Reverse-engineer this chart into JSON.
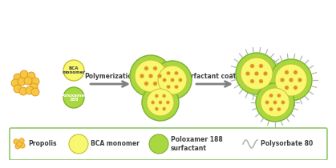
{
  "bg_color": "#ffffff",
  "legend_border_color": "#90c870",
  "arrow_color": "#808080",
  "propolis_color": "#f5c842",
  "propolis_dot_color": "#e09020",
  "bca_fill": "#f8f870",
  "bca_border": "#c8c030",
  "poloxamer_fill": "#a8d840",
  "poloxamer_border": "#80b030",
  "surfactant_line_color": "#b0b8b0",
  "text_color": "#404040",
  "label_polymerization": "Polymerization",
  "label_surfactant": "Surfactant coating",
  "label_bca": "BCA\nmonomer",
  "label_poloxamer": "Poloxamer\n188",
  "legend_propolis": "Propolis",
  "legend_bca": "BCA monomer",
  "legend_poloxamer": "Poloxamer 188\nsurfactant",
  "legend_polysorbate": "Polysorbate 80"
}
